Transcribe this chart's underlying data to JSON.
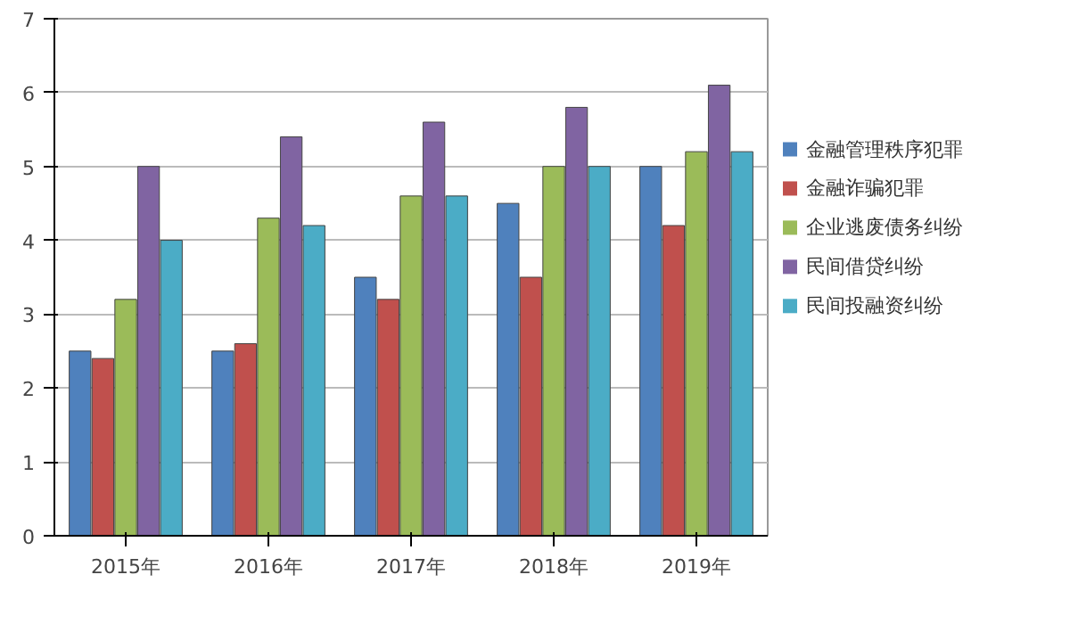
{
  "chart_data": {
    "type": "bar",
    "categories": [
      "2015年",
      "2016年",
      "2017年",
      "2018年",
      "2019年"
    ],
    "series": [
      {
        "name": "金融管理秩序犯罪",
        "color": "#4f81bd",
        "values": [
          2.5,
          2.5,
          3.5,
          4.5,
          5.0
        ]
      },
      {
        "name": "金融诈骗犯罪",
        "color": "#c0504d",
        "values": [
          2.4,
          2.6,
          3.2,
          3.5,
          4.2
        ]
      },
      {
        "name": "企业逃废债务纠纷",
        "color": "#9bbb59",
        "values": [
          3.2,
          4.3,
          4.6,
          5.0,
          5.2
        ]
      },
      {
        "name": "民间借贷纠纷",
        "color": "#8064a2",
        "values": [
          5.0,
          5.4,
          5.6,
          5.8,
          6.1
        ]
      },
      {
        "name": "民间投融资纠纷",
        "color": "#4bacc6",
        "values": [
          4.0,
          4.2,
          4.6,
          5.0,
          5.2
        ]
      }
    ],
    "ylim": [
      0,
      7
    ],
    "yticks": [
      0,
      1,
      2,
      3,
      4,
      5,
      6,
      7
    ],
    "grid": "y",
    "legend": "right"
  }
}
